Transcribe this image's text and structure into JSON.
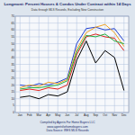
{
  "chart_data": {
    "type": "line",
    "title": "Longmont: Percent Houses & Condos Under Contract within 14 Days",
    "subtitle": "Data through MLS Records, Excluding New Construction",
    "footer": [
      "Compiled by Agents For Home Buyers LLC",
      "www.agentsforhomebuyers.com",
      "Data Source: IRES MLS Records"
    ],
    "categories": [
      "Jan",
      "Feb",
      "Mar",
      "Apr",
      "May",
      "Jun",
      "Jul",
      "Aug",
      "Sep",
      "Oct",
      "Nov",
      "Dec"
    ],
    "series": [
      {
        "color": "#1f3fd0",
        "values": [
          20,
          19,
          21,
          20,
          22,
          25,
          50,
          61,
          62,
          60,
          61,
          52
        ]
      },
      {
        "color": "#e0201a",
        "values": [
          16,
          17,
          16,
          18,
          17,
          20,
          42,
          55,
          57,
          55,
          54,
          45
        ]
      },
      {
        "color": "#f0a020",
        "values": [
          18,
          20,
          19,
          22,
          21,
          24,
          46,
          58,
          62,
          64,
          58,
          48
        ]
      },
      {
        "color": "#20b040",
        "values": [
          17,
          18,
          18,
          19,
          20,
          23,
          44,
          56,
          55,
          57,
          52,
          50
        ]
      },
      {
        "color": "#000000",
        "values": [
          11,
          12,
          10,
          13,
          12,
          15,
          38,
          52,
          36,
          45,
          40,
          16
        ]
      }
    ],
    "ylim": [
      0,
      70
    ],
    "yticks": [
      0,
      5,
      10,
      15,
      20,
      25,
      30,
      35,
      40,
      45,
      50,
      55,
      60,
      65,
      70
    ],
    "grid": true
  }
}
